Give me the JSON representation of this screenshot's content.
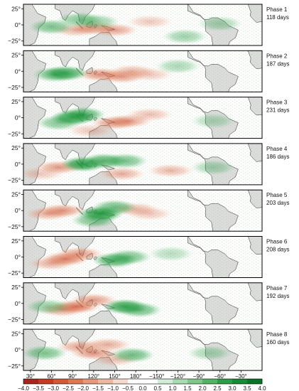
{
  "chart_data": {
    "type": "heatmap",
    "panels": [
      {
        "phase": "Phase 1",
        "days": "118 days",
        "wet": [
          {
            "lon": 60,
            "lat": -3,
            "a": 0.55
          },
          {
            "lon": 100,
            "lat": 8,
            "a": 0.5
          },
          {
            "lon": 125,
            "lat": 5,
            "a": 0.4
          },
          {
            "lon": 250,
            "lat": -18,
            "a": 0.4
          },
          {
            "lon": 300,
            "lat": 2,
            "a": 0.35
          }
        ],
        "dry": [
          {
            "lon": 120,
            "lat": -5,
            "a": 0.55
          },
          {
            "lon": 150,
            "lat": -8,
            "a": 0.5
          },
          {
            "lon": 95,
            "lat": -8,
            "a": 0.4
          },
          {
            "lon": 200,
            "lat": 5,
            "a": 0.3
          }
        ]
      },
      {
        "phase": "Phase 2",
        "days": "187 days",
        "wet": [
          {
            "lon": 80,
            "lat": -3,
            "a": 0.8
          },
          {
            "lon": 65,
            "lat": -5,
            "a": 0.6
          },
          {
            "lon": 240,
            "lat": 8,
            "a": 0.35
          }
        ],
        "dry": [
          {
            "lon": 130,
            "lat": -5,
            "a": 0.6
          },
          {
            "lon": 160,
            "lat": -8,
            "a": 0.55
          },
          {
            "lon": 175,
            "lat": 0,
            "a": 0.4
          },
          {
            "lon": 200,
            "lat": -5,
            "a": 0.3
          }
        ]
      },
      {
        "phase": "Phase 3",
        "days": "231 days",
        "wet": [
          {
            "lon": 90,
            "lat": 0,
            "a": 0.9
          },
          {
            "lon": 105,
            "lat": 5,
            "a": 0.7
          },
          {
            "lon": 70,
            "lat": -8,
            "a": 0.5
          },
          {
            "lon": 290,
            "lat": -5,
            "a": 0.3
          }
        ],
        "dry": [
          {
            "lon": 150,
            "lat": -8,
            "a": 0.6
          },
          {
            "lon": 170,
            "lat": -5,
            "a": 0.5
          },
          {
            "lon": 200,
            "lat": 5,
            "a": 0.35
          },
          {
            "lon": 115,
            "lat": -20,
            "a": 0.3
          }
        ]
      },
      {
        "phase": "Phase 4",
        "days": "186 days",
        "wet": [
          {
            "lon": 105,
            "lat": 0,
            "a": 0.9
          },
          {
            "lon": 135,
            "lat": 5,
            "a": 0.7
          },
          {
            "lon": 165,
            "lat": 5,
            "a": 0.55
          },
          {
            "lon": 290,
            "lat": -5,
            "a": 0.35
          }
        ],
        "dry": [
          {
            "lon": 70,
            "lat": -5,
            "a": 0.55
          },
          {
            "lon": 160,
            "lat": -15,
            "a": 0.45
          },
          {
            "lon": 230,
            "lat": -10,
            "a": 0.4
          },
          {
            "lon": 45,
            "lat": -15,
            "a": 0.3
          }
        ]
      },
      {
        "phase": "Phase 5",
        "days": "203 days",
        "wet": [
          {
            "lon": 130,
            "lat": -5,
            "a": 0.95
          },
          {
            "lon": 150,
            "lat": 5,
            "a": 0.6
          },
          {
            "lon": 120,
            "lat": -15,
            "a": 0.55
          }
        ],
        "dry": [
          {
            "lon": 75,
            "lat": 0,
            "a": 0.6
          },
          {
            "lon": 55,
            "lat": -5,
            "a": 0.45
          },
          {
            "lon": 180,
            "lat": 2,
            "a": 0.4
          },
          {
            "lon": 200,
            "lat": -5,
            "a": 0.3
          }
        ]
      },
      {
        "phase": "Phase 6",
        "days": "208 days",
        "wet": [
          {
            "lon": 150,
            "lat": -5,
            "a": 0.75
          },
          {
            "lon": 170,
            "lat": 0,
            "a": 0.55
          },
          {
            "lon": 230,
            "lat": 5,
            "a": 0.3
          }
        ],
        "dry": [
          {
            "lon": 80,
            "lat": -3,
            "a": 0.75
          },
          {
            "lon": 100,
            "lat": 5,
            "a": 0.55
          },
          {
            "lon": 60,
            "lat": -10,
            "a": 0.45
          }
        ]
      },
      {
        "phase": "Phase 7",
        "days": "192 days",
        "wet": [
          {
            "lon": 165,
            "lat": -5,
            "a": 0.85
          },
          {
            "lon": 185,
            "lat": -10,
            "a": 0.6
          },
          {
            "lon": 55,
            "lat": -5,
            "a": 0.45
          }
        ],
        "dry": [
          {
            "lon": 95,
            "lat": -5,
            "a": 0.8
          },
          {
            "lon": 120,
            "lat": 5,
            "a": 0.55
          },
          {
            "lon": 75,
            "lat": -10,
            "a": 0.5
          }
        ]
      },
      {
        "phase": "Phase 8",
        "days": "160 days",
        "wet": [
          {
            "lon": 175,
            "lat": -8,
            "a": 0.6
          },
          {
            "lon": 50,
            "lat": -5,
            "a": 0.55
          },
          {
            "lon": 285,
            "lat": -5,
            "a": 0.35
          }
        ],
        "dry": [
          {
            "lon": 120,
            "lat": -5,
            "a": 0.6
          },
          {
            "lon": 100,
            "lat": 5,
            "a": 0.5
          },
          {
            "lon": 140,
            "lat": 8,
            "a": 0.45
          },
          {
            "lon": 150,
            "lat": -15,
            "a": 0.35
          }
        ]
      }
    ],
    "yticks": [
      "25°",
      "0°",
      "−25°"
    ],
    "xticks": [
      "30°",
      "60°",
      "90°",
      "120°",
      "150°",
      "180°",
      "−150°",
      "−120°",
      "−90°",
      "−60°",
      "−30°"
    ],
    "colorbar": {
      "labels": [
        "−4.0",
        "−3.5",
        "−3.0",
        "−2.5",
        "−2.0",
        "−1.5",
        "−1.0",
        "−0.5",
        "0.0",
        "0.5",
        "1.0",
        "1.5",
        "2.0",
        "2.5",
        "3.0",
        "3.5",
        "4.0"
      ],
      "colors": [
        "#a5261a",
        "#c03d22",
        "#cf5a36",
        "#db7a52",
        "#e5997a",
        "#eeb8a0",
        "#f6d9cb",
        "#ffffff",
        "#ffffff",
        "#d3ecd8",
        "#a9dbb1",
        "#7ec88a",
        "#54b465",
        "#2f9d47",
        "#188a35",
        "#0b7426"
      ]
    }
  }
}
